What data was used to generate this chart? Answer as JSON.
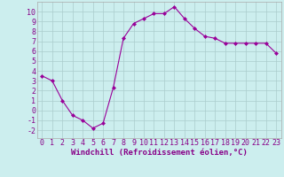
{
  "x": [
    0,
    1,
    2,
    3,
    4,
    5,
    6,
    7,
    8,
    9,
    10,
    11,
    12,
    13,
    14,
    15,
    16,
    17,
    18,
    19,
    20,
    21,
    22,
    23
  ],
  "y": [
    3.5,
    3.0,
    1.0,
    -0.5,
    -1.0,
    -1.8,
    -1.3,
    2.3,
    7.3,
    8.8,
    9.3,
    9.8,
    9.8,
    10.5,
    9.3,
    8.3,
    7.5,
    7.3,
    6.8,
    6.8,
    6.8,
    6.8,
    6.8,
    5.8
  ],
  "line_color": "#990099",
  "marker": "D",
  "marker_size": 2.0,
  "bg_color": "#cceeee",
  "grid_color": "#aacccc",
  "xlabel": "Windchill (Refroidissement éolien,°C)",
  "xlabel_fontsize": 6.5,
  "xlabel_color": "#880088",
  "ylabel_ticks": [
    -2,
    -1,
    0,
    1,
    2,
    3,
    4,
    5,
    6,
    7,
    8,
    9,
    10
  ],
  "xlim": [
    -0.5,
    23.5
  ],
  "ylim": [
    -2.8,
    11.0
  ],
  "tick_fontsize": 6.0,
  "tick_color": "#880088"
}
